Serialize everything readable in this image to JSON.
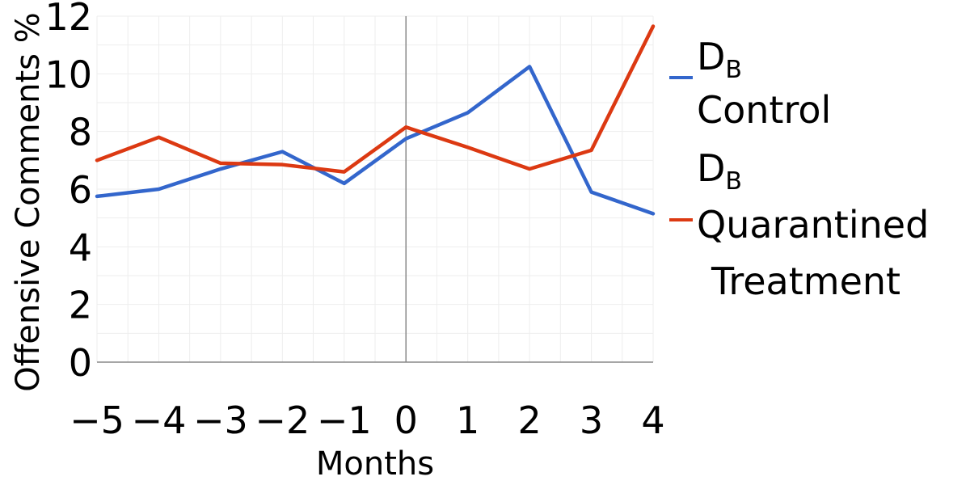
{
  "chart_data": {
    "type": "line",
    "xlabel": "Months",
    "ylabel": "Offensive Comments %",
    "x": [
      -5,
      -4,
      -3,
      -2,
      -1,
      0,
      1,
      2,
      3,
      4
    ],
    "x_tick_labels": [
      "−5",
      "−4",
      "−3",
      "−2",
      "−1",
      "0",
      "1",
      "2",
      "3",
      "4"
    ],
    "y_ticks": [
      0,
      2,
      4,
      6,
      8,
      10,
      12
    ],
    "xlim": [
      -5,
      4
    ],
    "ylim": [
      0,
      12
    ],
    "grid": true,
    "legend_position": "right",
    "series": [
      {
        "name_main": "D",
        "name_sub": "B",
        "name_rest": "Control",
        "color": "#3366cc",
        "values": [
          5.75,
          6.0,
          6.7,
          7.3,
          6.2,
          7.75,
          8.65,
          10.25,
          5.9,
          5.15
        ]
      },
      {
        "name_main": "D",
        "name_sub": "B",
        "name_rest": "Quarantined Treatment",
        "name_line1": "Quarantined",
        "name_line2": "Treatment",
        "color": "#dc3912",
        "values": [
          7.0,
          7.8,
          6.9,
          6.85,
          6.6,
          8.15,
          7.45,
          6.7,
          7.35,
          11.65
        ]
      }
    ]
  }
}
